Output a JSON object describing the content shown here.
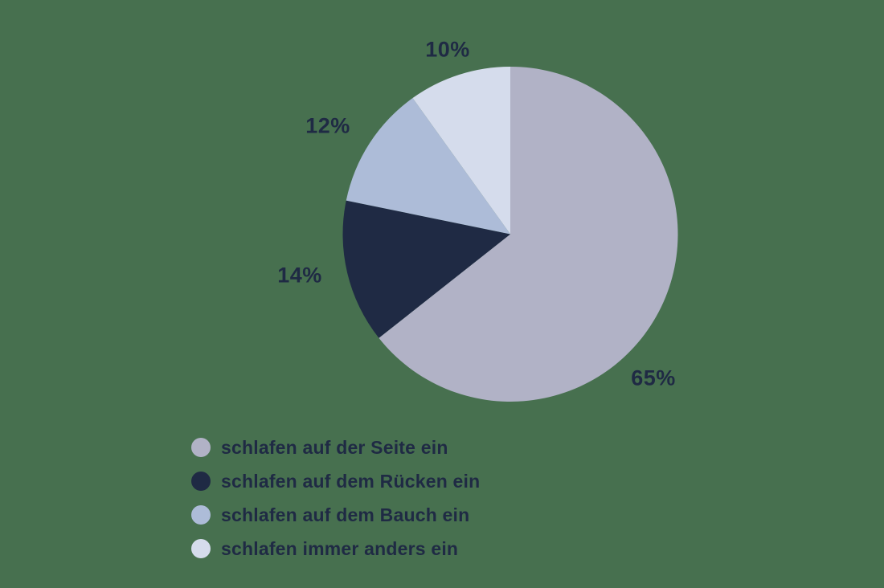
{
  "background_color": "#47704f",
  "text_color": "#1f2a44",
  "chart_data": {
    "type": "pie",
    "title": "",
    "categories": [
      "schlafen auf der Seite ein",
      "schlafen auf dem Rücken ein",
      "schlafen auf dem Bauch ein",
      "schlafen immer anders ein"
    ],
    "values": [
      65,
      14,
      12,
      10
    ],
    "value_labels": [
      "65%",
      "14%",
      "12%",
      "10%"
    ],
    "colors": [
      "#b1b2c6",
      "#1f2a44",
      "#adbcd8",
      "#d5dcec"
    ],
    "start_angle_deg": 0,
    "direction": "clockwise",
    "legend_position": "bottom-left",
    "grid": false
  }
}
